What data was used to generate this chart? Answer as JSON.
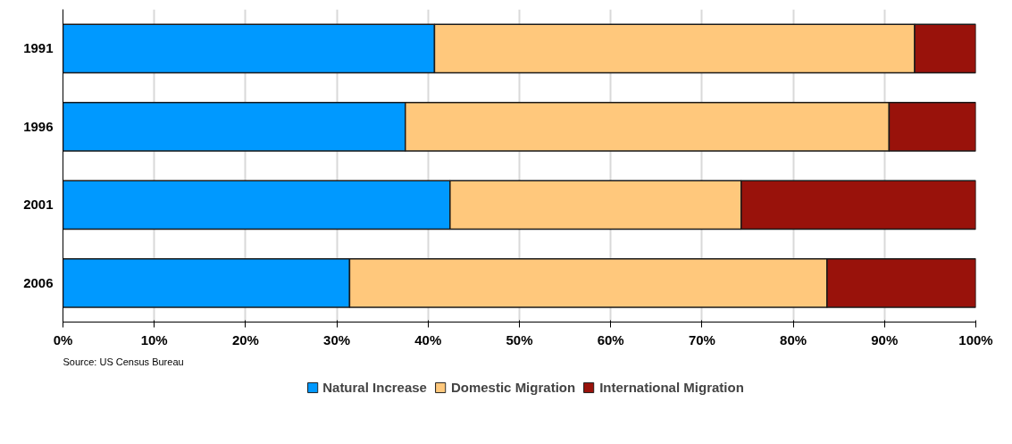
{
  "chart_data": {
    "type": "bar",
    "orientation": "horizontal",
    "stacked": true,
    "categories": [
      "1991",
      "1996",
      "2001",
      "2006"
    ],
    "series": [
      {
        "name": "Natural Increase",
        "color": "#0099ff",
        "values": [
          40.7,
          37.5,
          42.4,
          31.4
        ]
      },
      {
        "name": "Domestic Migration",
        "color": "#ffc87c",
        "values": [
          52.6,
          53.0,
          31.9,
          52.3
        ]
      },
      {
        "name": "International Migration",
        "color": "#99120b",
        "values": [
          6.7,
          9.5,
          25.7,
          16.3
        ]
      }
    ],
    "xlim": [
      0,
      100
    ],
    "xticks": [
      {
        "value": 0,
        "label": "0%"
      },
      {
        "value": 10,
        "label": "10%"
      },
      {
        "value": 20,
        "label": "20%"
      },
      {
        "value": 30,
        "label": "30%"
      },
      {
        "value": 40,
        "label": "40%"
      },
      {
        "value": 50,
        "label": "50%"
      },
      {
        "value": 60,
        "label": "60%"
      },
      {
        "value": 70,
        "label": "70%"
      },
      {
        "value": 80,
        "label": "80%"
      },
      {
        "value": 90,
        "label": "90%"
      },
      {
        "value": 100,
        "label": "100%"
      }
    ],
    "grid": "x",
    "legend": "bottom",
    "annotations": [
      "Source: US Census Bureau"
    ]
  }
}
